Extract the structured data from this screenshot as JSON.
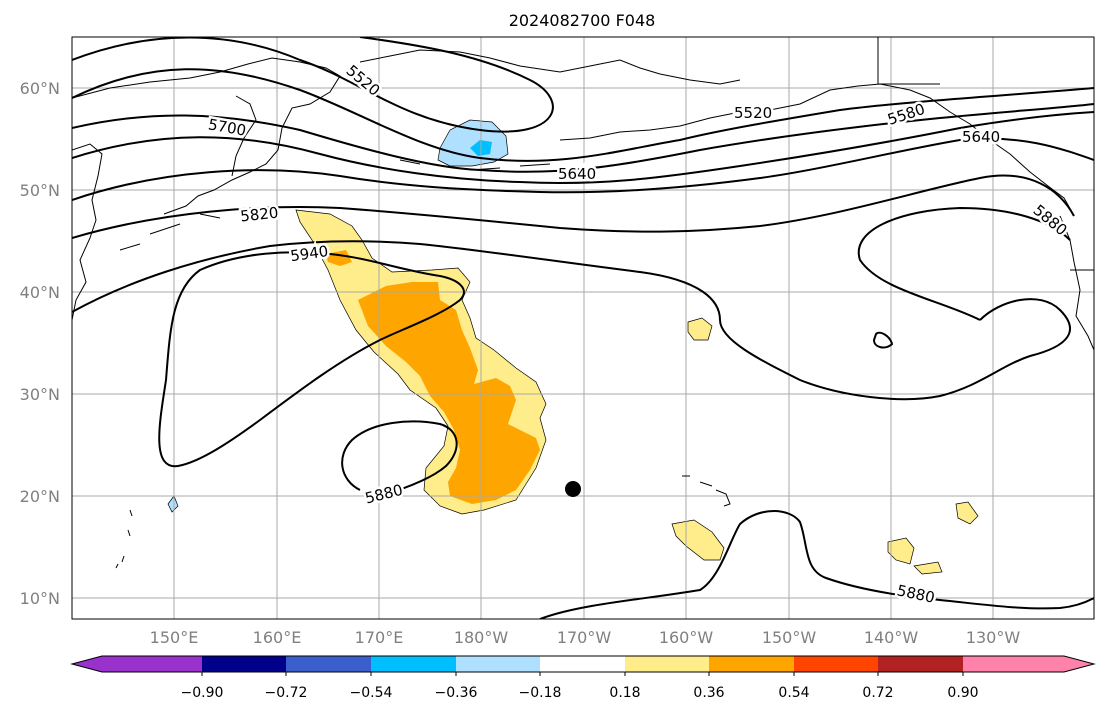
{
  "title": "2024082700 F048",
  "lat_labels": [
    "60°N",
    "50°N",
    "40°N",
    "30°N",
    "20°N",
    "10°N"
  ],
  "lon_labels": [
    "150°E",
    "160°E",
    "170°E",
    "180°W",
    "170°W",
    "160°W",
    "150°W",
    "140°W",
    "130°W"
  ],
  "contour_labels": [
    "5520",
    "5700",
    "5820",
    "5940",
    "5880",
    "5640",
    "5520",
    "5580",
    "5640",
    "5880",
    "5880"
  ],
  "colorbar": {
    "ticks": [
      "−0.90",
      "−0.72",
      "−0.54",
      "−0.36",
      "−0.18",
      "0.18",
      "0.36",
      "0.54",
      "0.72",
      "0.90"
    ],
    "colors": [
      "#9932cc",
      "#00008b",
      "#3a5fcd",
      "#00bfff",
      "#b0e0ff",
      "#ffffff",
      "#ffec8b",
      "#ffa500",
      "#ff4500",
      "#b22222",
      "#ff82ab"
    ]
  },
  "fill_colors": {
    "light_positive": "#ffec8b",
    "medium_positive": "#ffa500",
    "light_negative": "#b0e0ff",
    "medium_negative": "#00bfff"
  }
}
